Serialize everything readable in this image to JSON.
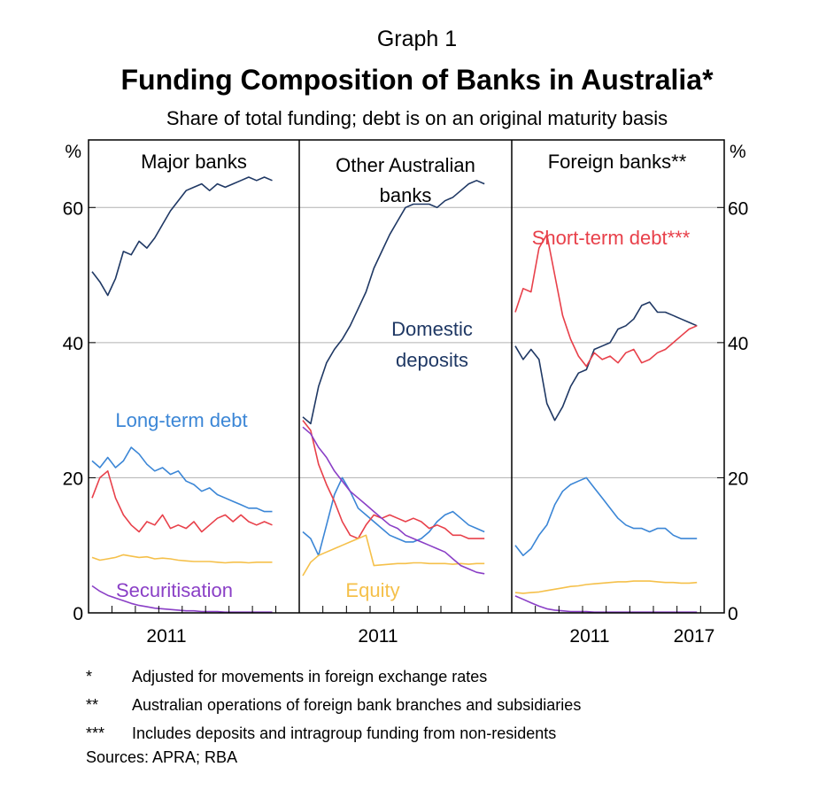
{
  "header": {
    "graph_label": "Graph 1",
    "title": "Funding Composition of Banks in Australia*",
    "subtitle": "Share of total funding; debt is on an original maturity basis"
  },
  "axis": {
    "left_unit": "%",
    "right_unit": "%",
    "y_ticks": [
      "0",
      "20",
      "40",
      "60"
    ],
    "y_tick_values": [
      0,
      20,
      40,
      60
    ]
  },
  "notes": [
    {
      "mark": "*",
      "text": "Adjusted for movements in foreign exchange rates"
    },
    {
      "mark": "**",
      "text": "Australian operations of foreign bank branches and subsidiaries"
    },
    {
      "mark": "***",
      "text": "Includes deposits and intragroup funding from non-residents"
    }
  ],
  "sources": "Sources:   APRA; RBA",
  "colors": {
    "domestic_deposits": "#1f3864",
    "long_term_debt": "#3b86d6",
    "short_term_debt": "#e8404a",
    "equity": "#f5c04a",
    "securitisation": "#8a3fc6",
    "gridline": "#b0b0b0"
  },
  "chart_data": [
    {
      "type": "line",
      "panel_title": "Major banks",
      "x_tick_labels": [
        "2011"
      ],
      "ylim": [
        0,
        70
      ],
      "series_labels": [
        {
          "key": "long_term_debt",
          "text": "Long-term debt"
        },
        {
          "key": "securitisation",
          "text": "Securitisation"
        }
      ],
      "x": [
        2008.75,
        2009.0,
        2009.25,
        2009.5,
        2009.75,
        2010.0,
        2010.25,
        2010.5,
        2010.75,
        2011.0,
        2011.25,
        2011.5,
        2011.75,
        2012.0,
        2012.25,
        2012.5,
        2012.75,
        2013.0,
        2013.25,
        2013.5,
        2013.75,
        2014.0,
        2014.25,
        2014.5
      ],
      "series": [
        {
          "key": "domestic_deposits",
          "values": [
            50.5,
            49.0,
            47.0,
            49.5,
            53.5,
            53.0,
            55.0,
            54.0,
            55.5,
            57.5,
            59.5,
            61.0,
            62.5,
            63.0,
            63.5,
            62.5,
            63.5,
            63.0,
            63.5,
            64.0,
            64.5,
            64.0,
            64.5,
            64.0
          ]
        },
        {
          "key": "long_term_debt",
          "values": [
            22.5,
            21.5,
            23.0,
            21.5,
            22.5,
            24.5,
            23.5,
            22.0,
            21.0,
            21.5,
            20.5,
            21.0,
            19.5,
            19.0,
            18.0,
            18.5,
            17.5,
            17.0,
            16.5,
            16.0,
            15.5,
            15.5,
            15.0,
            15.0
          ]
        },
        {
          "key": "short_term_debt",
          "values": [
            17.0,
            20.0,
            21.0,
            17.0,
            14.5,
            13.0,
            12.0,
            13.5,
            13.0,
            14.5,
            12.5,
            13.0,
            12.5,
            13.5,
            12.0,
            13.0,
            14.0,
            14.5,
            13.5,
            14.5,
            13.5,
            13.0,
            13.5,
            13.0
          ]
        },
        {
          "key": "equity",
          "values": [
            8.2,
            7.8,
            8.0,
            8.2,
            8.6,
            8.4,
            8.2,
            8.3,
            8.0,
            8.1,
            8.0,
            7.8,
            7.7,
            7.6,
            7.6,
            7.6,
            7.5,
            7.4,
            7.5,
            7.5,
            7.4,
            7.5,
            7.5,
            7.5
          ]
        },
        {
          "key": "securitisation",
          "values": [
            4.0,
            3.2,
            2.6,
            2.2,
            1.8,
            1.4,
            1.1,
            0.9,
            0.7,
            0.6,
            0.5,
            0.4,
            0.3,
            0.3,
            0.2,
            0.2,
            0.2,
            0.1,
            0.1,
            0.1,
            0.1,
            0.1,
            0.1,
            0.1
          ]
        }
      ]
    },
    {
      "type": "line",
      "panel_title": "Other Australian banks",
      "x_tick_labels": [
        "2011"
      ],
      "ylim": [
        0,
        70
      ],
      "series_labels": [
        {
          "key": "domestic_deposits",
          "text": "Domestic deposits"
        },
        {
          "key": "equity",
          "text": "Equity"
        }
      ],
      "x": [
        2008.75,
        2009.0,
        2009.25,
        2009.5,
        2009.75,
        2010.0,
        2010.25,
        2010.5,
        2010.75,
        2011.0,
        2011.25,
        2011.5,
        2011.75,
        2012.0,
        2012.25,
        2012.5,
        2012.75,
        2013.0,
        2013.25,
        2013.5,
        2013.75,
        2014.0,
        2014.25,
        2014.5
      ],
      "series": [
        {
          "key": "domestic_deposits",
          "values": [
            29.0,
            28.0,
            33.5,
            37.0,
            39.0,
            40.5,
            42.5,
            45.0,
            47.5,
            51.0,
            53.5,
            56.0,
            58.0,
            60.0,
            60.5,
            60.5,
            60.5,
            60.0,
            61.0,
            61.5,
            62.5,
            63.5,
            64.0,
            63.5
          ]
        },
        {
          "key": "long_term_debt",
          "values": [
            12.0,
            11.0,
            8.5,
            13.0,
            17.5,
            20.0,
            18.0,
            15.5,
            14.5,
            13.5,
            12.5,
            11.5,
            11.0,
            10.5,
            10.5,
            11.0,
            12.0,
            13.5,
            14.5,
            15.0,
            14.0,
            13.0,
            12.5,
            12.0
          ]
        },
        {
          "key": "short_term_debt",
          "values": [
            28.5,
            27.0,
            22.0,
            19.0,
            16.5,
            13.5,
            11.5,
            11.0,
            13.0,
            14.5,
            14.0,
            14.5,
            14.0,
            13.5,
            14.0,
            13.5,
            12.5,
            13.0,
            12.5,
            11.5,
            11.5,
            11.0,
            11.0,
            11.0
          ]
        },
        {
          "key": "equity",
          "values": [
            5.5,
            7.5,
            8.5,
            9.0,
            9.5,
            10.0,
            10.5,
            11.0,
            11.5,
            7.0,
            7.1,
            7.2,
            7.3,
            7.3,
            7.4,
            7.4,
            7.3,
            7.3,
            7.3,
            7.2,
            7.3,
            7.2,
            7.3,
            7.3
          ]
        },
        {
          "key": "securitisation",
          "values": [
            27.5,
            26.5,
            24.5,
            23.0,
            21.0,
            19.5,
            18.0,
            17.0,
            16.0,
            15.0,
            14.0,
            13.0,
            12.5,
            11.5,
            11.0,
            10.5,
            10.0,
            9.5,
            9.0,
            8.0,
            7.0,
            6.5,
            6.0,
            5.8
          ]
        }
      ]
    },
    {
      "type": "line",
      "panel_title": "Foreign banks**",
      "x_tick_labels": [
        "2011",
        "2017"
      ],
      "ylim": [
        0,
        70
      ],
      "series_labels": [
        {
          "key": "short_term_debt",
          "text": "Short-term debt***"
        }
      ],
      "x": [
        2008.75,
        2009.0,
        2009.25,
        2009.5,
        2009.75,
        2010.0,
        2010.25,
        2010.5,
        2010.75,
        2011.0,
        2011.25,
        2011.5,
        2011.75,
        2012.0,
        2012.25,
        2012.5,
        2012.75,
        2013.0,
        2013.25,
        2013.5,
        2013.75,
        2014.0,
        2014.25,
        2014.5
      ],
      "series": [
        {
          "key": "domestic_deposits",
          "values": [
            39.5,
            37.5,
            39.0,
            37.5,
            31.0,
            28.5,
            30.5,
            33.5,
            35.5,
            36.0,
            39.0,
            39.5,
            40.0,
            42.0,
            42.5,
            43.5,
            45.5,
            46.0,
            44.5,
            44.5,
            44.0,
            43.5,
            43.0,
            42.5
          ]
        },
        {
          "key": "long_term_debt",
          "values": [
            10.0,
            8.5,
            9.5,
            11.5,
            13.0,
            16.0,
            18.0,
            19.0,
            19.5,
            20.0,
            18.5,
            17.0,
            15.5,
            14.0,
            13.0,
            12.5,
            12.5,
            12.0,
            12.5,
            12.5,
            11.5,
            11.0,
            11.0,
            11.0
          ]
        },
        {
          "key": "short_term_debt",
          "values": [
            44.5,
            48.0,
            47.5,
            54.0,
            56.0,
            50.0,
            44.0,
            40.5,
            38.0,
            36.5,
            38.5,
            37.5,
            38.0,
            37.0,
            38.5,
            39.0,
            37.0,
            37.5,
            38.5,
            39.0,
            40.0,
            41.0,
            42.0,
            42.5
          ]
        },
        {
          "key": "equity",
          "values": [
            3.0,
            2.9,
            3.0,
            3.1,
            3.3,
            3.5,
            3.7,
            3.9,
            4.0,
            4.2,
            4.3,
            4.4,
            4.5,
            4.6,
            4.6,
            4.7,
            4.7,
            4.7,
            4.6,
            4.5,
            4.5,
            4.4,
            4.4,
            4.5
          ]
        },
        {
          "key": "securitisation",
          "values": [
            2.5,
            2.0,
            1.5,
            1.0,
            0.6,
            0.4,
            0.3,
            0.2,
            0.2,
            0.2,
            0.1,
            0.1,
            0.1,
            0.1,
            0.1,
            0.1,
            0.1,
            0.1,
            0.1,
            0.1,
            0.1,
            0.1,
            0.1,
            0.1
          ]
        }
      ]
    }
  ]
}
